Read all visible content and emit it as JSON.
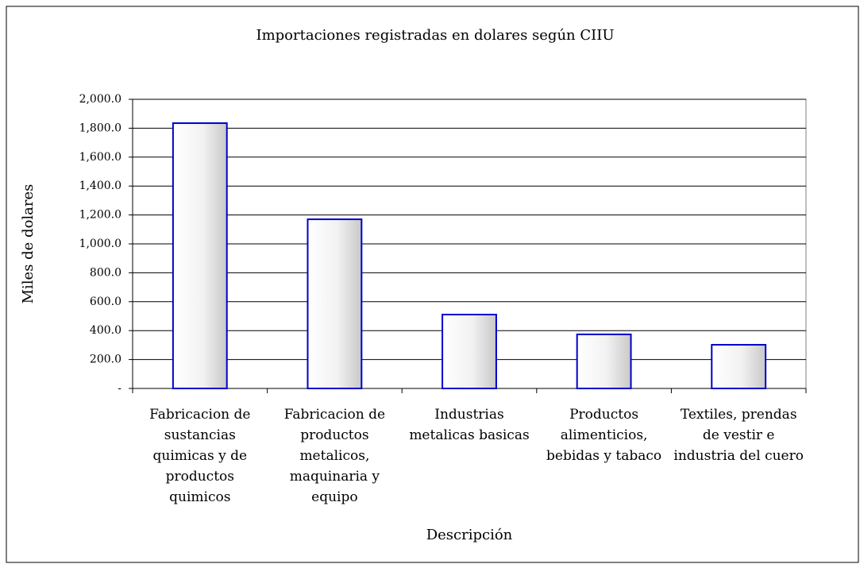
{
  "chart_data": {
    "type": "bar",
    "title": "Importaciones registradas en dolares según CIIU",
    "x_label": "Descripción",
    "y_label": "Miles de dolares",
    "categories": [
      "Fabricacion de sustancias quimicas y de productos quimicos",
      "Fabricacion de productos metalicos, maquinaria y equipo",
      "Industrias metalicas basicas",
      "Productos alimenticios, bebidas y tabaco",
      "Textiles, prendas de vestir e industria del cuero"
    ],
    "values": [
      1835,
      1170,
      511,
      374,
      302
    ],
    "color": "#0000cc",
    "ylim": [
      0,
      2000
    ],
    "yticks": [
      {
        "value": 0,
        "label": "-"
      },
      {
        "value": 200,
        "label": "200.0"
      },
      {
        "value": 400,
        "label": "400.0"
      },
      {
        "value": 600,
        "label": "600.0"
      },
      {
        "value": 800,
        "label": "800.0"
      },
      {
        "value": 1000,
        "label": "1,000.0"
      },
      {
        "value": 1200,
        "label": "1,200.0"
      },
      {
        "value": 1400,
        "label": "1,400.0"
      },
      {
        "value": 1600,
        "label": "1,600.0"
      },
      {
        "value": 1800,
        "label": "1,800.0"
      },
      {
        "value": 2000,
        "label": "2,000.0"
      }
    ],
    "grid": true
  }
}
